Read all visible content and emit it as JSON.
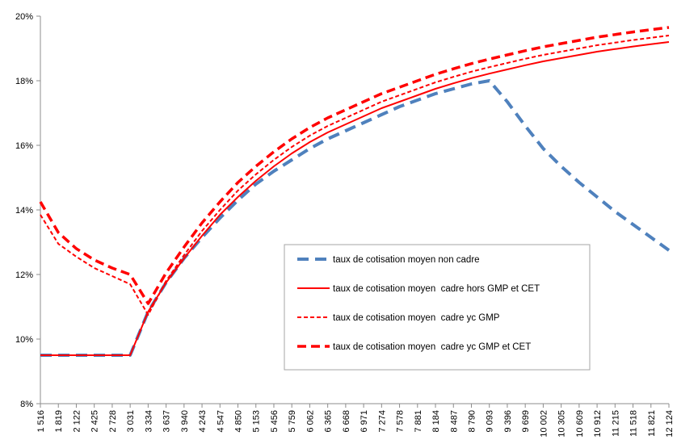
{
  "chart_data": {
    "type": "line",
    "title": "",
    "xlabel": "",
    "ylabel": "",
    "categories": [
      "1 516",
      "1 819",
      "2 122",
      "2 425",
      "2 728",
      "3 031",
      "3 334",
      "3 637",
      "3 940",
      "4 243",
      "4 547",
      "4 850",
      "5 153",
      "5 456",
      "5 759",
      "6 062",
      "6 365",
      "6 668",
      "6 971",
      "7 274",
      "7 578",
      "7 881",
      "8 184",
      "8 487",
      "8 790",
      "9 093",
      "9 396",
      "9 699",
      "10 002",
      "10 305",
      "10 609",
      "10 912",
      "11 215",
      "11 518",
      "11 821",
      "12 124"
    ],
    "y_ticks": [
      "8%",
      "10%",
      "12%",
      "14%",
      "16%",
      "18%",
      "20%"
    ],
    "ylim": [
      8,
      20
    ],
    "grid": false,
    "legend_position": "center-right",
    "series": [
      {
        "name": "taux de cotisation moyen non cadre",
        "color": "#4F81BD",
        "style": "long-dash",
        "values": [
          9.5,
          9.5,
          9.5,
          9.5,
          9.5,
          9.5,
          10.85,
          11.75,
          12.5,
          13.15,
          13.75,
          14.3,
          14.8,
          15.2,
          15.55,
          15.9,
          16.2,
          16.45,
          16.7,
          16.95,
          17.2,
          17.4,
          17.6,
          17.75,
          17.9,
          18.0,
          17.35,
          16.6,
          15.9,
          15.35,
          14.85,
          14.4,
          13.95,
          13.55,
          13.15,
          12.75
        ]
      },
      {
        "name": "taux de cotisation moyen  cadre hors GMP et CET",
        "color": "#FF0000",
        "style": "solid",
        "values": [
          9.5,
          9.5,
          9.5,
          9.5,
          9.5,
          9.5,
          10.85,
          11.75,
          12.5,
          13.2,
          13.85,
          14.4,
          14.9,
          15.35,
          15.75,
          16.1,
          16.4,
          16.65,
          16.9,
          17.15,
          17.35,
          17.55,
          17.75,
          17.92,
          18.08,
          18.22,
          18.35,
          18.48,
          18.6,
          18.7,
          18.8,
          18.9,
          18.98,
          19.06,
          19.13,
          19.2
        ]
      },
      {
        "name": "taux de cotisation moyen  cadre yc GMP",
        "color": "#FF0000",
        "style": "short-dash",
        "values": [
          13.85,
          12.95,
          12.55,
          12.2,
          11.95,
          11.7,
          10.75,
          11.8,
          12.6,
          13.35,
          14.0,
          14.6,
          15.1,
          15.55,
          15.95,
          16.3,
          16.6,
          16.85,
          17.1,
          17.35,
          17.55,
          17.75,
          17.95,
          18.12,
          18.28,
          18.42,
          18.55,
          18.68,
          18.8,
          18.9,
          19.0,
          19.1,
          19.18,
          19.26,
          19.33,
          19.4
        ]
      },
      {
        "name": "taux de cotisation moyen  cadre yc GMP et CET",
        "color": "#FF0000",
        "style": "medium-dash",
        "values": [
          14.25,
          13.3,
          12.8,
          12.45,
          12.2,
          12.0,
          11.1,
          12.05,
          12.85,
          13.6,
          14.25,
          14.85,
          15.35,
          15.8,
          16.2,
          16.55,
          16.85,
          17.1,
          17.35,
          17.6,
          17.8,
          18.0,
          18.2,
          18.37,
          18.53,
          18.67,
          18.8,
          18.93,
          19.05,
          19.15,
          19.25,
          19.35,
          19.43,
          19.51,
          19.58,
          19.65
        ]
      }
    ]
  }
}
